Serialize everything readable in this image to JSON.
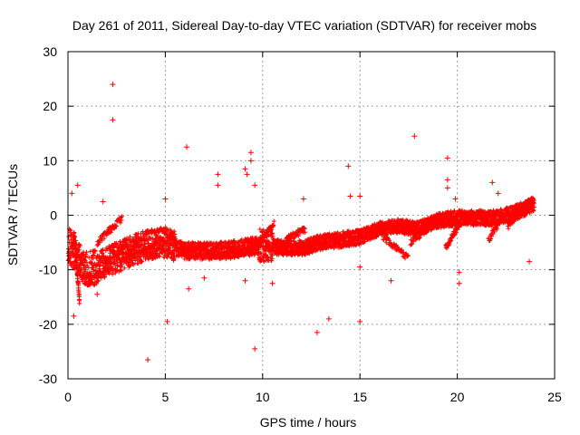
{
  "chart_data": {
    "type": "scatter",
    "title": "Day 261 of 2011, Sidereal Day-to-day VTEC variation (SDTVAR) for receiver mobs",
    "xlabel": "GPS time / hours",
    "ylabel": "SDTVAR / TECUs",
    "xlim": [
      0,
      25
    ],
    "ylim": [
      -30,
      30
    ],
    "xticks": [
      0,
      5,
      10,
      15,
      20,
      25
    ],
    "yticks": [
      -30,
      -20,
      -10,
      0,
      10,
      20,
      30
    ],
    "grid": true,
    "marker": "+",
    "color": "#ff0000",
    "trend_main": [
      [
        0.0,
        -5
      ],
      [
        0.5,
        -8
      ],
      [
        1.0,
        -10
      ],
      [
        1.5,
        -9.5
      ],
      [
        2.0,
        -8.5
      ],
      [
        3.0,
        -7
      ],
      [
        4.0,
        -5.5
      ],
      [
        5.0,
        -5
      ],
      [
        6.0,
        -6.5
      ],
      [
        7.0,
        -6.5
      ],
      [
        8.0,
        -6.5
      ],
      [
        9.0,
        -6
      ],
      [
        10.0,
        -5.5
      ],
      [
        11.0,
        -6
      ],
      [
        12.0,
        -6
      ],
      [
        13.0,
        -5
      ],
      [
        14.0,
        -4.5
      ],
      [
        15.0,
        -4
      ],
      [
        16.0,
        -2.5
      ],
      [
        17.0,
        -2
      ],
      [
        18.0,
        -2.5
      ],
      [
        19.0,
        -1
      ],
      [
        20.0,
        -0.5
      ],
      [
        21.0,
        -0.5
      ],
      [
        22.0,
        -0.5
      ],
      [
        23.0,
        0.5
      ],
      [
        23.9,
        2
      ]
    ],
    "outliers": [
      [
        2.3,
        24
      ],
      [
        2.3,
        17.5
      ],
      [
        6.1,
        12.5
      ],
      [
        7.7,
        7.5
      ],
      [
        7.7,
        5.5
      ],
      [
        9.1,
        8.5
      ],
      [
        9.4,
        11.5
      ],
      [
        9.4,
        10
      ],
      [
        9.2,
        7.5
      ],
      [
        9.6,
        5.5
      ],
      [
        9.6,
        -24.5
      ],
      [
        10.5,
        -12.5
      ],
      [
        12.8,
        -21.5
      ],
      [
        13.4,
        -19
      ],
      [
        12.1,
        3
      ],
      [
        14.4,
        9
      ],
      [
        14.5,
        3.5
      ],
      [
        15.0,
        3.5
      ],
      [
        15.0,
        -19.5
      ],
      [
        17.8,
        14.5
      ],
      [
        19.5,
        10.5
      ],
      [
        19.5,
        6.5
      ],
      [
        19.5,
        5
      ],
      [
        19.9,
        3
      ],
      [
        20.1,
        -10.5
      ],
      [
        20.1,
        -12.5
      ],
      [
        21.8,
        6
      ],
      [
        22.1,
        4
      ],
      [
        23.7,
        -8.5
      ],
      [
        4.1,
        -26.5
      ],
      [
        5.1,
        -19.5
      ],
      [
        5.0,
        3
      ],
      [
        0.2,
        4
      ],
      [
        0.5,
        5.5
      ],
      [
        1.5,
        -14.5
      ],
      [
        1.8,
        2.5
      ],
      [
        6.2,
        -13.5
      ],
      [
        9.1,
        -12
      ],
      [
        7.0,
        -11.5
      ],
      [
        16.6,
        -12
      ],
      [
        0.3,
        -18.5
      ],
      [
        15.0,
        -9.5
      ]
    ]
  }
}
